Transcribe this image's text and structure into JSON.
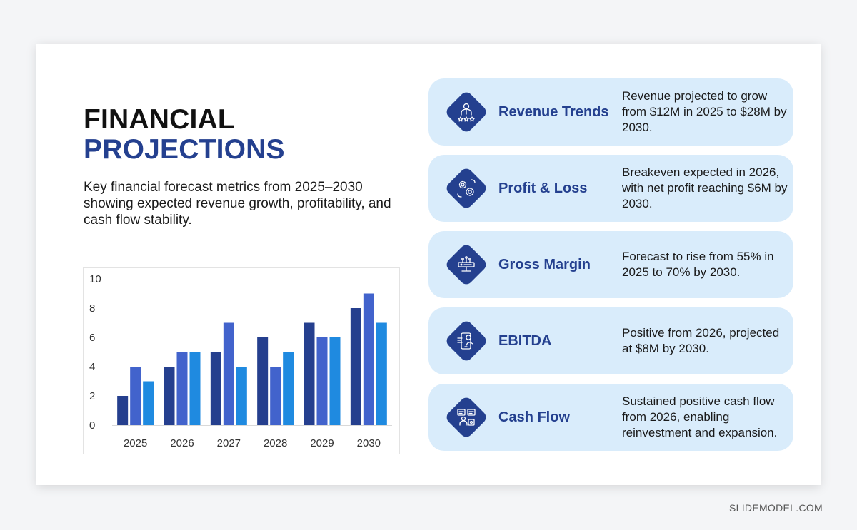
{
  "slide": {
    "title_line1": "FINANCIAL",
    "title_line2": "PROJECTIONS",
    "subtitle": "Key financial forecast metrics from 2025–2030 showing expected revenue growth, profitability, and cash flow stability."
  },
  "colors": {
    "navy": "#24408f",
    "series": [
      "#253f8e",
      "#4263cc",
      "#1f8ae0"
    ],
    "card_bg": "#d9ecfb"
  },
  "chart_data": {
    "type": "bar",
    "categories": [
      "2025",
      "2026",
      "2027",
      "2028",
      "2029",
      "2030"
    ],
    "series": [
      {
        "values": [
          2,
          4,
          5,
          6,
          7,
          8
        ]
      },
      {
        "values": [
          4,
          5,
          7,
          4,
          6,
          9
        ]
      },
      {
        "values": [
          3,
          5,
          4,
          5,
          6,
          7
        ]
      }
    ],
    "ylim": [
      0,
      10
    ],
    "yticks": [
      "0",
      "2",
      "4",
      "6",
      "8",
      "10"
    ],
    "grid": false,
    "legend": "none"
  },
  "cards": [
    {
      "title": "Revenue Trends",
      "icon": "person-rating-icon",
      "desc": "Revenue projected to grow from $12M in 2025 to $28M by 2030."
    },
    {
      "title": "Profit & Loss",
      "icon": "gears-icon",
      "desc": "Breakeven expected in 2026, with net profit reaching $6M by 2030."
    },
    {
      "title": "Gross Margin",
      "icon": "server-network-icon",
      "desc": "Forecast to rise from 55% in 2025 to 70% by 2030."
    },
    {
      "title": "EBITDA",
      "icon": "mobile-finance-icon",
      "desc": "Positive from 2026, projected at $8M by 2030."
    },
    {
      "title": "Cash Flow",
      "icon": "presentation-user-icon",
      "desc": "Sustained positive cash flow from 2026, enabling reinvestment and expansion."
    }
  ],
  "watermark": "SLIDEMODEL.COM"
}
